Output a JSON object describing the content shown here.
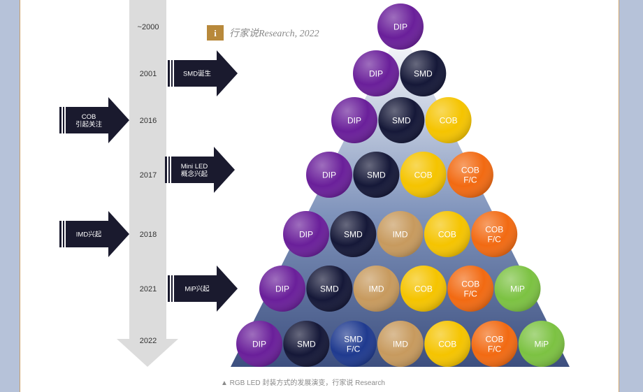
{
  "brand": {
    "logo_text": "i",
    "text": "行家说Research, 2022"
  },
  "timeline": {
    "years": [
      "~2000",
      "2001",
      "2016",
      "2017",
      "2018",
      "2021",
      "2022"
    ]
  },
  "events_right": [
    {
      "lines": [
        "SMD诞生"
      ]
    },
    {
      "lines": [
        "Mini LED",
        "概念兴起"
      ]
    },
    {
      "lines": [
        "MiP兴起"
      ]
    }
  ],
  "events_left": [
    {
      "lines": [
        "COB",
        "引起关注"
      ]
    },
    {
      "lines": [
        "IMD兴起"
      ]
    }
  ],
  "pyramid_rows": [
    [
      "DIP"
    ],
    [
      "DIP",
      "SMD"
    ],
    [
      "DIP",
      "SMD",
      "COB"
    ],
    [
      "DIP",
      "SMD",
      "COB",
      "COB\nF/C"
    ],
    [
      "DIP",
      "SMD",
      "IMD",
      "COB",
      "COB\nF/C"
    ],
    [
      "DIP",
      "SMD",
      "IMD",
      "COB",
      "COB\nF/C",
      "MiP"
    ],
    [
      "DIP",
      "SMD",
      "SMD\nF/C",
      "IMD",
      "COB",
      "COB\nF/C",
      "MiP"
    ]
  ],
  "colors": {
    "DIP": "#6a1f9a",
    "SMD": "#151838",
    "SMD F/C": "#1f3a8f",
    "IMD": "#c79a5e",
    "COB": "#f5c400",
    "COB F/C": "#f26a12",
    "MiP": "#7cc242",
    "timeline_arrow": "#dcdcdc",
    "event_arrow": "#1a1a2e"
  },
  "caption": "▲  RGB LED 封装方式的发展演变，行家说 Research"
}
